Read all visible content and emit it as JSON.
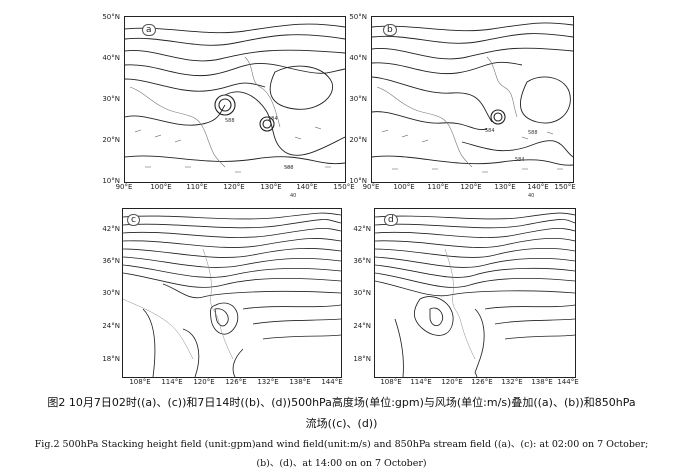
{
  "panels": {
    "a": {
      "label": "a",
      "y_ticks": [
        "50°N",
        "40°N",
        "30°N",
        "20°N",
        "10°N"
      ],
      "x_ticks": [
        "90°E",
        "100°E",
        "110°E",
        "120°E",
        "130°E",
        "140°E",
        "150°E"
      ],
      "contour_labels": [
        "588",
        "584",
        "588"
      ]
    },
    "b": {
      "label": "b",
      "y_ticks": [
        "50°N",
        "40°N",
        "30°N",
        "20°N",
        "10°N"
      ],
      "x_ticks": [
        "90°E",
        "100°E",
        "110°E",
        "120°E",
        "130°E",
        "140°E",
        "150°E"
      ],
      "contour_labels": [
        "584",
        "588",
        "584"
      ]
    },
    "c": {
      "label": "c",
      "y_ticks": [
        "42°N",
        "36°N",
        "30°N",
        "24°N",
        "18°N"
      ],
      "x_ticks": [
        "108°E",
        "114°E",
        "120°E",
        "126°E",
        "132°E",
        "138°E",
        "144°E"
      ]
    },
    "d": {
      "label": "d",
      "y_ticks": [
        "42°N",
        "36°N",
        "30°N",
        "24°N",
        "18°N"
      ],
      "x_ticks": [
        "108°E",
        "114°E",
        "120°E",
        "126°E",
        "132°E",
        "138°E",
        "144°E"
      ]
    }
  },
  "wind_scale_a": "40",
  "wind_scale_b": "40",
  "caption": {
    "cn_line1": "图2 10月7日02时((a)、(c))和7日14时((b)、(d))500hPa高度场(单位:gpm)与风场(单位:m/s)叠加((a)、(b))和850hPa",
    "cn_line2": "流场((c)、(d))",
    "en_line1": "Fig.2 500hPa Stacking height field (unit:gpm)and wind field(unit:m/s) and 850hPa stream field ((a)、(c): at 02:00 on 7 October;",
    "en_line2": "(b)、(d)、at 14:00 on on 7 October)"
  }
}
